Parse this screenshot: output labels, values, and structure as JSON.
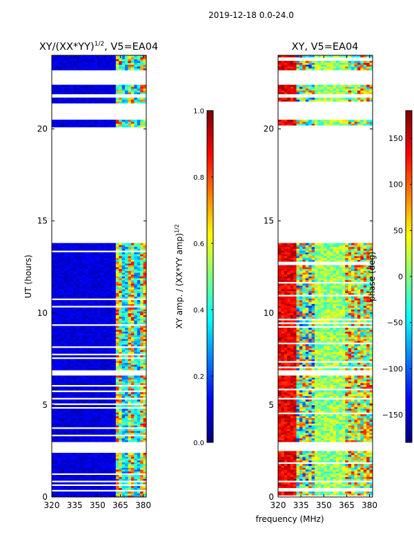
{
  "figure": {
    "suptitle": "2019-12-18 0.0-24.0",
    "shared_xlabel": "frequency (MHz)"
  },
  "colors": {
    "jet": [
      "#00007f",
      "#0000ff",
      "#007fff",
      "#00ffff",
      "#7fff7f",
      "#ffff00",
      "#ff7f00",
      "#ff0000",
      "#7f0000"
    ]
  },
  "chart_data": [
    {
      "type": "heatmap",
      "title_main": "XY/(XX*YY)",
      "title_sup": "1/2",
      "title_tail": ", V5=EA04",
      "xlabel": "",
      "ylabel": "UT (hours)",
      "xlim": [
        320,
        382
      ],
      "ylim": [
        0,
        24
      ],
      "xticks": [
        320,
        335,
        350,
        365,
        380
      ],
      "yticks": [
        0,
        5,
        10,
        15,
        20
      ],
      "colorbar": {
        "label_main": "XY amp. / (XX*YY amp)",
        "label_sup": "1/2",
        "range": [
          0.0,
          1.0
        ],
        "ticks": [
          "0.0",
          "0.2",
          "0.4",
          "0.6",
          "0.8",
          "1.0"
        ],
        "tick_values": [
          0.0,
          0.2,
          0.4,
          0.6,
          0.8,
          1.0
        ]
      },
      "data_ut_ranges": [
        [
          0.0,
          0.3
        ],
        [
          0.45,
          2.5
        ],
        [
          3.0,
          6.6
        ],
        [
          6.8,
          13.8
        ],
        [
          20.1,
          20.5
        ],
        [
          21.4,
          21.7
        ],
        [
          21.9,
          22.4
        ],
        [
          23.2,
          24.0
        ]
      ],
      "notes": "Low amplitude (~0.1) across most of the band; elevated amplitude (0.4-1.0) in 362-382 MHz columns."
    },
    {
      "type": "heatmap",
      "title": "XY, V5=EA04",
      "xlabel": "",
      "ylabel": "",
      "xlim": [
        320,
        382
      ],
      "ylim": [
        0,
        24
      ],
      "xticks": [
        320,
        335,
        350,
        365,
        380
      ],
      "yticks": [
        0,
        5,
        10,
        15,
        20
      ],
      "colorbar": {
        "label": "phase (deg)",
        "range": [
          -180,
          180
        ],
        "ticks": [
          "−150",
          "−100",
          "−50",
          "0",
          "50",
          "100",
          "150"
        ],
        "tick_values": [
          -150,
          -100,
          -50,
          0,
          50,
          100,
          150
        ]
      },
      "data_ut_ranges": [
        [
          0.0,
          0.3
        ],
        [
          0.45,
          2.5
        ],
        [
          3.0,
          6.6
        ],
        [
          6.8,
          13.8
        ],
        [
          20.1,
          20.5
        ],
        [
          21.4,
          21.7
        ],
        [
          21.9,
          22.4
        ],
        [
          23.2,
          24.0
        ]
      ],
      "notes": "Phase spans full range; red (~+150 deg) near 320-330 MHz, green/cyan (~-50..0 deg) in mid band."
    }
  ]
}
